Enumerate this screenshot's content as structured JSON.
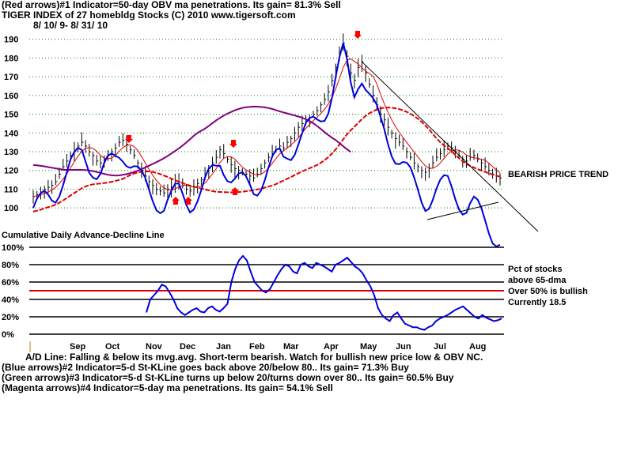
{
  "header": {
    "line1": "(Red arrows)#1 Indicator=50-day OBV ma penetrations. Its gain= 81.3% Sell",
    "line2": "TIGER INDEX of  27 homebldg Stocks  (C) 2010  www.tigersoft.com",
    "line3": "8/ 10/ 9-  8/ 31/ 10"
  },
  "footer": {
    "line1": "A/D Line: Falling & below its mvg.avg. Short-term bearish. Watch for bullish new price low & OBV NC.",
    "line2": "(Blue arrows)#2 Indicator=5-d St-KLine goes back above 20/below 80.. Its gain= 71.3% Buy",
    "line3": "(Green arrows)#3 Indicator=5-d St-KLine turns up below 20/turns down over 80.. Its gain= 60.5% Buy",
    "line4": "(Magenta arrows)#4 Indicator=5-day ma penetrations. Its gain= 54.1% Sell"
  },
  "colors": {
    "price": "#000000",
    "obv": "#0000dd",
    "ma_red": "#dd0000",
    "ma_purple": "#800080",
    "pct_line": "#0000dd",
    "signal_red": "#ff0000",
    "grid": "#008000"
  },
  "chart_data": [
    {
      "type": "line",
      "title": "",
      "panel": "price",
      "ylim": [
        95,
        192
      ],
      "y_ticks": [
        "190",
        "180",
        "170",
        "160",
        "150",
        "140",
        "130",
        "120",
        "110",
        "100"
      ],
      "x_ticks": [
        "Sep",
        "Oct",
        "Nov",
        "Dec",
        "Jan",
        "Feb",
        "Mar",
        "Apr",
        "May",
        "Jun",
        "Jul",
        "Aug"
      ],
      "annotation": "BEARISH PRICE TREND",
      "price_close": [
        106,
        107,
        108,
        110,
        111,
        112,
        114,
        118,
        122,
        125,
        128,
        130,
        133,
        135,
        133,
        130,
        128,
        125,
        124,
        126,
        128,
        130,
        132,
        135,
        136,
        134,
        131,
        128,
        124,
        120,
        117,
        114,
        112,
        110,
        109,
        108,
        110,
        111,
        113,
        114,
        112,
        110,
        109,
        111,
        113,
        115,
        118,
        121,
        124,
        127,
        131,
        129,
        126,
        123,
        121,
        120,
        119,
        118,
        117,
        116,
        118,
        121,
        124,
        127,
        129,
        131,
        133,
        132,
        135,
        137,
        140,
        143,
        145,
        147,
        148,
        150,
        152,
        155,
        158,
        162,
        168,
        175,
        182,
        188,
        181,
        172,
        168,
        175,
        178,
        172,
        166,
        160,
        155,
        150,
        147,
        143,
        140,
        137,
        135,
        133,
        130,
        127,
        124,
        122,
        120,
        119,
        121,
        124,
        127,
        129,
        131,
        133,
        132,
        130,
        128,
        126,
        125,
        127,
        128,
        126,
        124,
        122,
        120,
        118,
        117,
        116
      ],
      "series": [
        {
          "name": "",
          "values": []
        }
      ]
    },
    {
      "type": "line",
      "title": "Cumulative Daily Advance-Decline Line",
      "panel": "breadth",
      "ylim": [
        0,
        100
      ],
      "y_ticks": [
        "100%",
        "80%",
        "60%",
        "40%",
        "20%",
        "0%"
      ],
      "threshold": 50,
      "labels": {
        "pct": "Pct of stocks",
        "above": "above 65-dma",
        "over": "Over 50% is bullish",
        "currently": "Currently  18.5"
      },
      "series": [
        {
          "name": "",
          "values": [
            25,
            40,
            45,
            50,
            57,
            55,
            48,
            40,
            30,
            25,
            22,
            25,
            28,
            30,
            26,
            25,
            30,
            32,
            28,
            26,
            30,
            35,
            60,
            75,
            85,
            90,
            85,
            72,
            60,
            55,
            50,
            48,
            52,
            60,
            68,
            75,
            80,
            78,
            72,
            70,
            80,
            82,
            78,
            76,
            82,
            80,
            78,
            75,
            72,
            80,
            82,
            85,
            88,
            83,
            78,
            75,
            70,
            62,
            55,
            45,
            30,
            22,
            18,
            15,
            22,
            25,
            18,
            12,
            10,
            8,
            8,
            6,
            5,
            8,
            10,
            15,
            18,
            20,
            22,
            25,
            28,
            30,
            32,
            28,
            24,
            20,
            18,
            22,
            19,
            17,
            15,
            16,
            18
          ]
        }
      ]
    }
  ]
}
